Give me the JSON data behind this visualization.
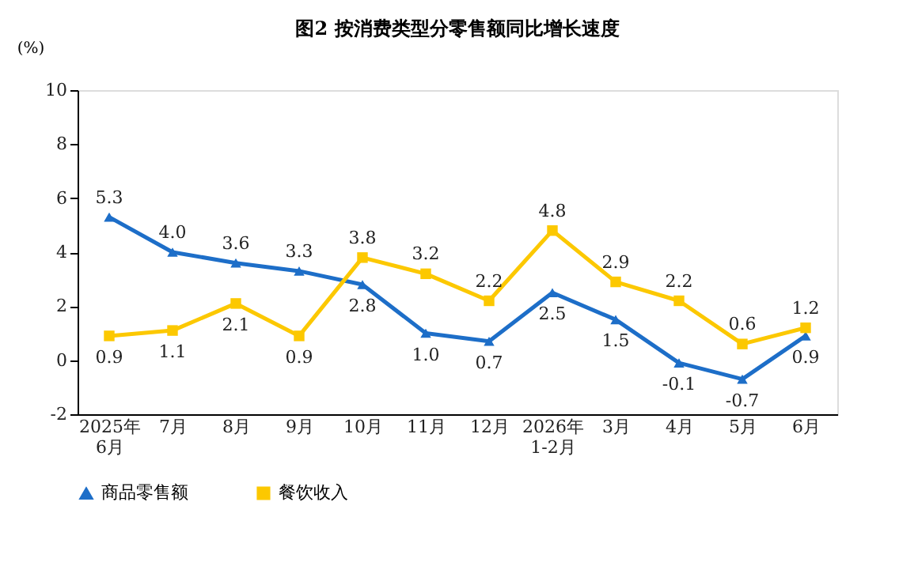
{
  "chart_data": {
    "type": "line",
    "title": "图2 按消费类型分零售额同比增长速度",
    "ylabel": "(%)",
    "categories": [
      "2025年\n6月",
      "7月",
      "8月",
      "9月",
      "10月",
      "11月",
      "12月",
      "2026年\n1-2月",
      "3月",
      "4月",
      "5月",
      "6月"
    ],
    "series": [
      {
        "name": "商品零售额",
        "color": "#1d6ec8",
        "marker": "triangle",
        "values": [
          5.3,
          4.0,
          3.6,
          3.3,
          2.8,
          1.0,
          0.7,
          2.5,
          1.5,
          -0.1,
          -0.7,
          0.9
        ],
        "value_labels": [
          "5.3",
          "4.0",
          "3.6",
          "3.3",
          "2.8",
          "1.0",
          "0.7",
          "2.5",
          "1.5",
          "-0.1",
          "-0.7",
          "0.9"
        ]
      },
      {
        "name": "餐饮收入",
        "color": "#fcc800",
        "marker": "square",
        "values": [
          0.9,
          1.1,
          2.1,
          0.9,
          3.8,
          3.2,
          2.2,
          4.8,
          2.9,
          2.2,
          0.6,
          1.2
        ],
        "value_labels": [
          "0.9",
          "1.1",
          "2.1",
          "0.9",
          "3.8",
          "3.2",
          "2.2",
          "4.8",
          "2.9",
          "2.2",
          "0.6",
          "1.2"
        ]
      }
    ],
    "ylim": [
      -2,
      10
    ],
    "yticks": [
      -2,
      0,
      2,
      4,
      6,
      8,
      10
    ],
    "grid": false,
    "legend": "bottom",
    "line_style": "solid"
  }
}
